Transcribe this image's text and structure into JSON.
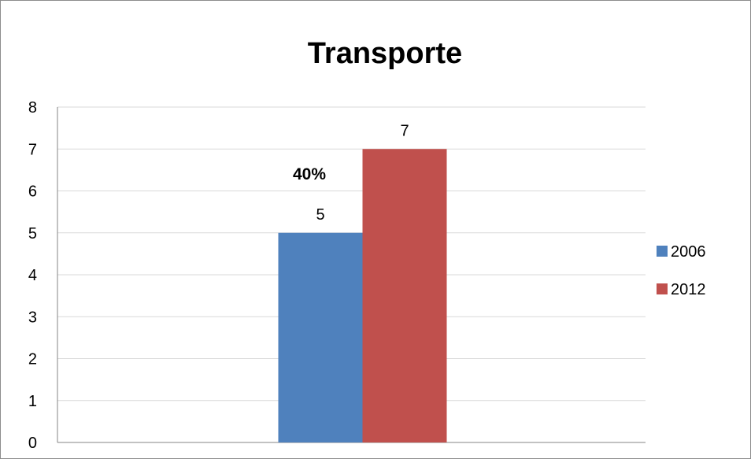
{
  "chart_data": {
    "type": "bar",
    "title": "Transporte",
    "xlabel": "",
    "ylabel": "",
    "ylim": [
      0,
      8
    ],
    "yticks": [
      0,
      1,
      2,
      3,
      4,
      5,
      6,
      7,
      8
    ],
    "grid": true,
    "legend_position": "right",
    "categories": [
      ""
    ],
    "series": [
      {
        "name": "2006",
        "values": [
          5
        ],
        "color": "#4F81BD"
      },
      {
        "name": "2012",
        "values": [
          7
        ],
        "color": "#C0504D"
      }
    ],
    "annotations": [
      {
        "text": "40%"
      }
    ]
  }
}
